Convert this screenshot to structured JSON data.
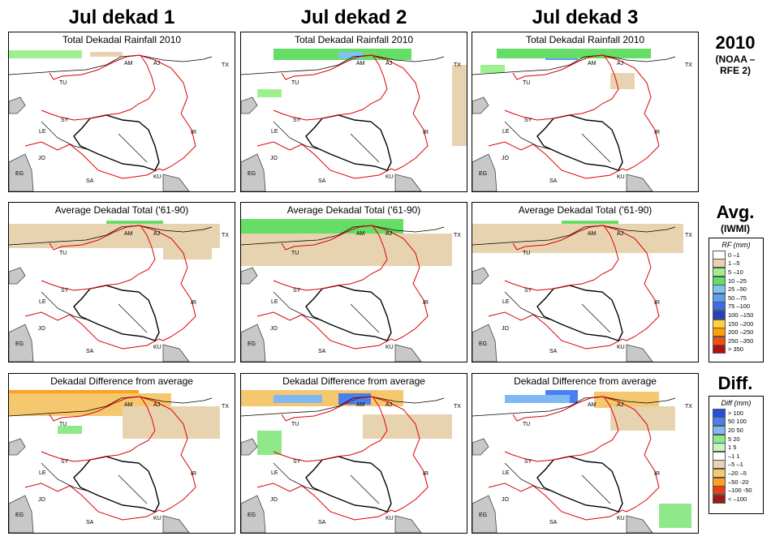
{
  "columns": [
    "Jul dekad 1",
    "Jul dekad 2",
    "Jul dekad 3"
  ],
  "rows": [
    {
      "title": "Total Dekadal Rainfall 2010"
    },
    {
      "title": "Average Dekadal Total ('61-90)"
    },
    {
      "title": "Dekadal Difference from average"
    }
  ],
  "row_labels": [
    {
      "main": "2010",
      "sub": "(NOAA –RFE 2)"
    },
    {
      "main": "Avg.",
      "sub": "(IWMI)"
    },
    {
      "main": "Diff.",
      "sub": ""
    }
  ],
  "map_labels": [
    "AM",
    "AJ",
    "TX",
    "TU",
    "SY",
    "LE",
    "JO",
    "EG",
    "SA",
    "IR",
    "KU"
  ],
  "legend_rf": {
    "title": "RF (mm)",
    "items": [
      {
        "label": "0 –1",
        "color": "#ffffff"
      },
      {
        "label": "1 –5",
        "color": "#e8d3b0"
      },
      {
        "label": "5 –10",
        "color": "#9ef08e"
      },
      {
        "label": "10 –25",
        "color": "#66dd66"
      },
      {
        "label": "25 –50",
        "color": "#7fc3f0"
      },
      {
        "label": "50 –75",
        "color": "#5aa0ee"
      },
      {
        "label": "75 –100",
        "color": "#3a6ee6"
      },
      {
        "label": "100 –150",
        "color": "#2240c0"
      },
      {
        "label": "150 –200",
        "color": "#ffd040"
      },
      {
        "label": "200 –250",
        "color": "#ffa000"
      },
      {
        "label": "250 –350",
        "color": "#ee5010"
      },
      {
        "label": "> 350",
        "color": "#b01010"
      }
    ]
  },
  "legend_diff": {
    "title": "Diff (mm)",
    "items": [
      {
        "label": "> 100",
        "color": "#2a4fd6"
      },
      {
        "label": "50  100",
        "color": "#4a7ff0"
      },
      {
        "label": "20  50",
        "color": "#7fb8f5"
      },
      {
        "label": "5  20",
        "color": "#8fe88a"
      },
      {
        "label": "1   5",
        "color": "#c7f5c0"
      },
      {
        "label": "–1   1",
        "color": "#ffffff"
      },
      {
        "label": "–5  –1",
        "color": "#e8d3b0"
      },
      {
        "label": "–20  –5",
        "color": "#f5c870"
      },
      {
        "label": "–50 -20",
        "color": "#ffa020"
      },
      {
        "label": "–100 -50",
        "color": "#e84010"
      },
      {
        "label": "< –100",
        "color": "#a01818"
      }
    ]
  }
}
